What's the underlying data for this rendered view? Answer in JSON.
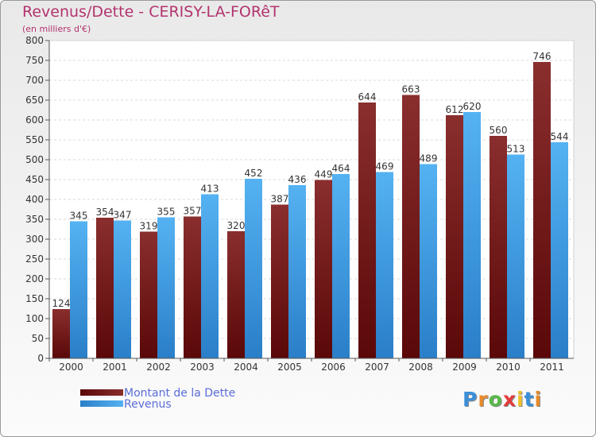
{
  "header": {
    "title": "Revenus/Dette - CERISY-LA-FORêT",
    "subtitle": "(en milliers d'€)"
  },
  "legend": {
    "items": [
      {
        "label": "Montant de la Dette",
        "color": "#7a1a1a"
      },
      {
        "label": "Revenus",
        "color": "#3a9ae6"
      }
    ]
  },
  "logo": {
    "text": "Proxiti",
    "colors": [
      "#3a8fd8",
      "#e88a2a",
      "#59b848",
      "#e23b3b",
      "#f0c22a",
      "#3a8fd8",
      "#e88a2a"
    ]
  },
  "chart_data": {
    "type": "bar",
    "categories": [
      "2000",
      "2001",
      "2002",
      "2003",
      "2004",
      "2005",
      "2006",
      "2007",
      "2008",
      "2009",
      "2010",
      "2011"
    ],
    "series": [
      {
        "name": "Montant de la Dette",
        "values": [
          124,
          354,
          319,
          357,
          320,
          387,
          449,
          644,
          663,
          612,
          560,
          746
        ],
        "color": "#7a1a1a"
      },
      {
        "name": "Revenus",
        "values": [
          345,
          347,
          355,
          413,
          452,
          436,
          464,
          469,
          489,
          620,
          513,
          544
        ],
        "color": "#3a9ae6"
      }
    ],
    "ylim": [
      0,
      800
    ],
    "yticks": [
      0,
      50,
      100,
      150,
      200,
      250,
      300,
      350,
      400,
      450,
      500,
      550,
      600,
      650,
      700,
      750,
      800
    ],
    "grid": true,
    "legend": "bottom-left"
  }
}
